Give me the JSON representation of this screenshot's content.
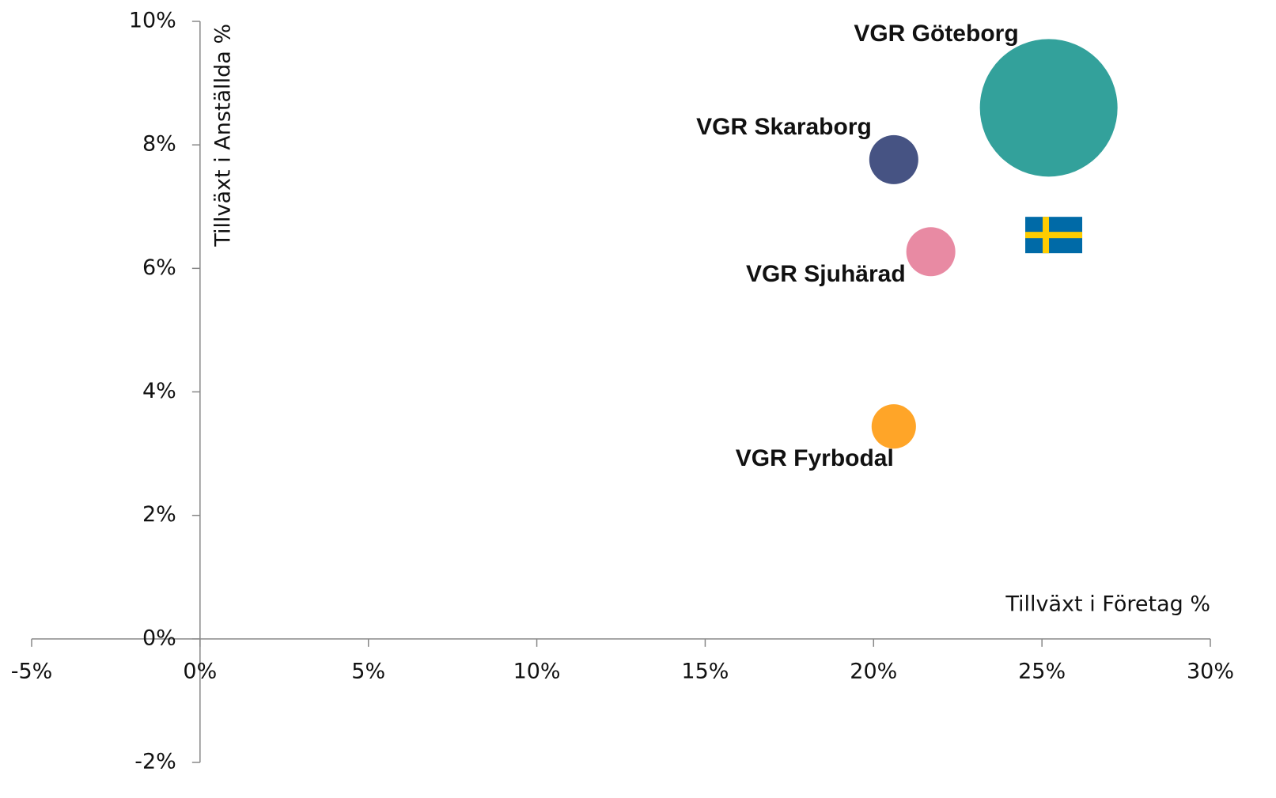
{
  "chart_data": {
    "type": "bubble",
    "x_label": "Tillväxt i Företag %",
    "y_label": "Tillväxt i Anställda %",
    "xlim": [
      -5,
      30
    ],
    "ylim": [
      -2,
      10
    ],
    "xticks": [
      {
        "value": -5,
        "label": "-5%"
      },
      {
        "value": 0,
        "label": "0%"
      },
      {
        "value": 5,
        "label": "5%"
      },
      {
        "value": 10,
        "label": "10%"
      },
      {
        "value": 15,
        "label": "15%"
      },
      {
        "value": 20,
        "label": "20%"
      },
      {
        "value": 25,
        "label": "25%"
      },
      {
        "value": 30,
        "label": "30%"
      }
    ],
    "yticks": [
      {
        "value": -2,
        "label": "-2%"
      },
      {
        "value": 0,
        "label": "0%"
      },
      {
        "value": 2,
        "label": "2%"
      },
      {
        "value": 4,
        "label": "4%"
      },
      {
        "value": 6,
        "label": "6%"
      },
      {
        "value": 8,
        "label": "8%"
      },
      {
        "value": 10,
        "label": "10%"
      }
    ],
    "series": [
      {
        "name": "VGR Göteborg",
        "color": "#33a19b",
        "x": [
          25.2
        ],
        "values": [
          8.6
        ],
        "sizes": [
          100
        ]
      },
      {
        "name": "VGR Skaraborg",
        "color": "#465383",
        "x": [
          20.6
        ],
        "values": [
          7.76
        ],
        "sizes": [
          12.7
        ]
      },
      {
        "name": "VGR Sjuhärad",
        "color": "#e88aa3",
        "x": [
          21.7
        ],
        "values": [
          6.27
        ],
        "sizes": [
          12.7
        ]
      },
      {
        "name": "VGR Fyrbodal",
        "color": "#ffa528",
        "x": [
          20.6
        ],
        "values": [
          3.44
        ],
        "sizes": [
          10.4
        ]
      }
    ],
    "reference_point": {
      "x": 25.35,
      "value": 6.54
    }
  }
}
